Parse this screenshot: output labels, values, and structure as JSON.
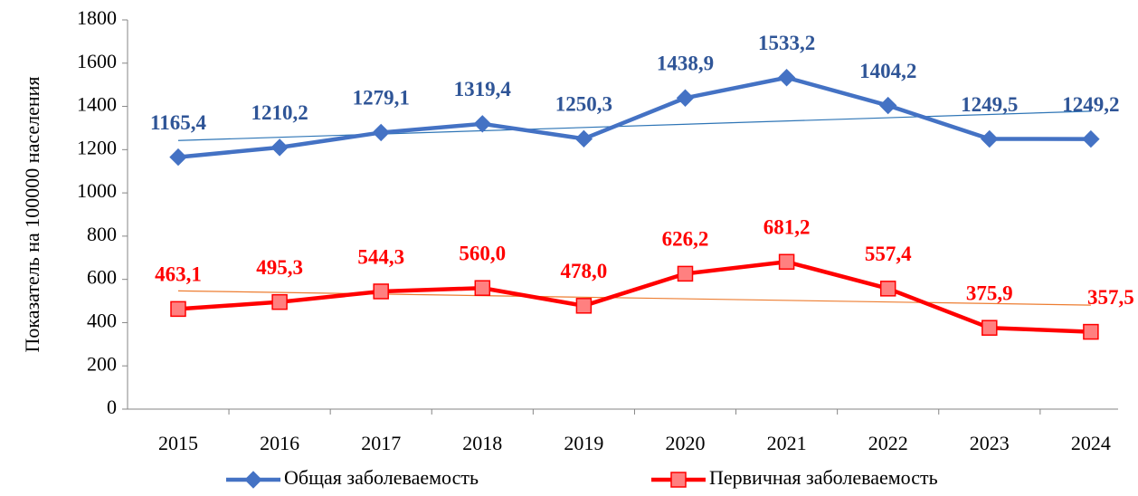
{
  "chart_data": {
    "type": "line",
    "y_label": "Показатель на 100000 населения",
    "categories": [
      "2015",
      "2016",
      "2017",
      "2018",
      "2019",
      "2020",
      "2021",
      "2022",
      "2023",
      "2024"
    ],
    "series": [
      {
        "name": "Общая заболеваемость",
        "color": "#4472c4",
        "label_color": "#2f5597",
        "marker": "diamond",
        "marker_fill": "#4472c4",
        "trendline": true,
        "trendline_color": "#2e75b6",
        "values": [
          1165.4,
          1210.2,
          1279.1,
          1319.4,
          1250.3,
          1438.9,
          1533.2,
          1404.2,
          1249.5,
          1249.2
        ],
        "value_labels": [
          "1165,4",
          "1210,2",
          "1279,1",
          "1319,4",
          "1250,3",
          "1438,9",
          "1533,2",
          "1404,2",
          "1249,5",
          "1249,2"
        ]
      },
      {
        "name": "Первичная заболеваемость",
        "color": "#ff0000",
        "label_color": "#ff0000",
        "marker": "square",
        "marker_fill": "#ff8080",
        "trendline": true,
        "trendline_color": "#ed7d31",
        "values": [
          463.1,
          495.3,
          544.3,
          560.0,
          478.0,
          626.2,
          681.2,
          557.4,
          375.9,
          357.5
        ],
        "value_labels": [
          "463,1",
          "495,3",
          "544,3",
          "560,0",
          "478,0",
          "626,2",
          "681,2",
          "557,4",
          "375,9",
          "357,5"
        ]
      }
    ],
    "ylim": [
      0,
      1800
    ],
    "yticks": [
      0,
      200,
      400,
      600,
      800,
      1000,
      1200,
      1400,
      1600,
      1800
    ],
    "grid": false
  }
}
